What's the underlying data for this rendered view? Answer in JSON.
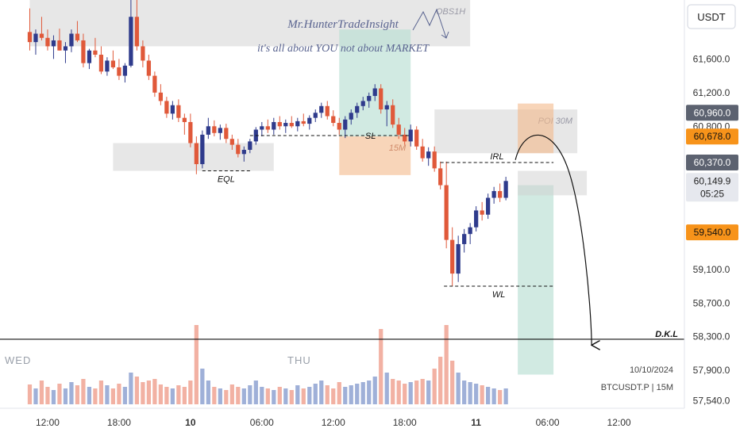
{
  "watermark": {
    "author": "Mr.HunterTradeInsight",
    "tagline": "it's all about YOU not about MARKET"
  },
  "info": {
    "date": "10/10/2024",
    "symbol": "BTCUSDT.P | 15M"
  },
  "day_labels": {
    "wed": "WED",
    "thu": "THU"
  },
  "colors": {
    "up": "#2f3b8c",
    "down": "#e0593a",
    "zone_gray": "#cfcfcf",
    "zone_orange": "#f3b98a",
    "zone_teal": "#b9dfd2",
    "price_badge_dark": "#5c6270",
    "price_badge_orange": "#f7931a"
  },
  "chart_data": {
    "type": "candlestick",
    "currency_label": "USDT",
    "y_axis": {
      "min": 57450,
      "max": 62300,
      "ticks": [
        "61,600.0",
        "61,200.0",
        "60,800.0",
        "59,100.0",
        "58,700.0",
        "58,300.0",
        "57,900.0",
        "57,540.0"
      ],
      "tick_values": [
        61600,
        61200,
        60800,
        59100,
        58700,
        58300,
        57900,
        57540
      ]
    },
    "x_axis": {
      "ticks": [
        "12:00",
        "18:00",
        "10",
        "06:00",
        "12:00",
        "18:00",
        "11",
        "06:00",
        "12:00"
      ],
      "tick_hours": [
        12,
        18,
        24,
        30,
        36,
        42,
        48,
        54,
        60
      ],
      "bold_ticks": [
        "10",
        "11"
      ],
      "min_hour": 8,
      "max_hour": 65.5
    },
    "price_badges": [
      {
        "label": "60,960.0",
        "value": 60960,
        "style": "dark"
      },
      {
        "label": "60,678.0",
        "value": 60678,
        "style": "orange"
      },
      {
        "label": "60,370.0",
        "value": 60370,
        "style": "dark"
      },
      {
        "label": "60,149.9",
        "sublabel": "05:25",
        "value": 60150,
        "style": "light"
      },
      {
        "label": "59,540.0",
        "value": 59540,
        "style": "orange"
      }
    ],
    "zones": [
      {
        "label": "OBS1H",
        "x0": 10.5,
        "x1": 47.5,
        "y0": 61750,
        "y1": 62300,
        "color": "gray"
      },
      {
        "label": "POI 30M",
        "x0": 44.5,
        "x1": 56.5,
        "y0": 60480,
        "y1": 61000,
        "color": "gray"
      },
      {
        "label": "",
        "x0": 17.5,
        "x1": 31,
        "y0": 60270,
        "y1": 60600,
        "color": "gray"
      },
      {
        "label": "15M",
        "x0": 36.5,
        "x1": 42.5,
        "y0": 60220,
        "y1": 60680,
        "color": "orange"
      },
      {
        "label": "",
        "x0": 36.5,
        "x1": 42.5,
        "y0": 60680,
        "y1": 61950,
        "color": "teal"
      },
      {
        "label": "",
        "x0": 51.5,
        "x1": 54.5,
        "y0": 60480,
        "y1": 61070,
        "color": "orange"
      },
      {
        "label": "",
        "x0": 51.5,
        "x1": 54.5,
        "y0": 57850,
        "y1": 60100,
        "color": "teal"
      },
      {
        "label": "",
        "x0": 51.5,
        "x1": 57.3,
        "y0": 59980,
        "y1": 60270,
        "color": "gray"
      }
    ],
    "levels": [
      {
        "label": "EQL",
        "price": 60270,
        "x0": 25,
        "x1": 29,
        "style": "dashed"
      },
      {
        "label": "SL",
        "price": 60690,
        "x0": 29,
        "x1": 42.5,
        "style": "dashed"
      },
      {
        "label": "IRL",
        "price": 60370,
        "x0": 45,
        "x1": 54.5,
        "style": "dashed"
      },
      {
        "label": "WL",
        "price": 58900,
        "x0": 45.3,
        "x1": 54.5,
        "style": "dashed"
      },
      {
        "label": "D.K.L",
        "price": 58270,
        "x0": 8,
        "x1": 65.5,
        "style": "solid"
      }
    ],
    "ohlc": [
      [
        10.5,
        61920,
        62200,
        61700,
        61800
      ],
      [
        11,
        61800,
        61950,
        61650,
        61900
      ],
      [
        11.5,
        61900,
        62100,
        61820,
        61850
      ],
      [
        12,
        61850,
        61950,
        61700,
        61750
      ],
      [
        12.5,
        61750,
        61880,
        61600,
        61820
      ],
      [
        13,
        61820,
        61960,
        61700,
        61700
      ],
      [
        13.5,
        61700,
        61800,
        61550,
        61750
      ],
      [
        14,
        61750,
        61950,
        61680,
        61900
      ],
      [
        14.5,
        61900,
        62050,
        61800,
        61820
      ],
      [
        15,
        61820,
        61900,
        61500,
        61550
      ],
      [
        15.5,
        61550,
        61720,
        61480,
        61700
      ],
      [
        16,
        61700,
        61850,
        61620,
        61650
      ],
      [
        16.5,
        61650,
        61750,
        61420,
        61450
      ],
      [
        17,
        61450,
        61620,
        61400,
        61580
      ],
      [
        17.5,
        61580,
        61700,
        61480,
        61500
      ],
      [
        18,
        61500,
        61600,
        61350,
        61400
      ],
      [
        18.5,
        61400,
        61550,
        61320,
        61520
      ],
      [
        19,
        61520,
        62300,
        61500,
        62100
      ],
      [
        19.5,
        62100,
        62300,
        61700,
        61750
      ],
      [
        20,
        61750,
        61820,
        61500,
        61580
      ],
      [
        20.5,
        61580,
        61650,
        61350,
        61400
      ],
      [
        21,
        61400,
        61450,
        61150,
        61200
      ],
      [
        21.5,
        61200,
        61300,
        61050,
        61100
      ],
      [
        22,
        61100,
        61150,
        60900,
        60950
      ],
      [
        22.5,
        60950,
        61100,
        60880,
        61050
      ],
      [
        23,
        61050,
        61120,
        60850,
        60900
      ],
      [
        23.5,
        60900,
        60950,
        60700,
        60850
      ],
      [
        24,
        60850,
        60950,
        60550,
        60600
      ],
      [
        24.5,
        60600,
        60680,
        60230,
        60350
      ],
      [
        25,
        60350,
        60750,
        60300,
        60700
      ],
      [
        25.5,
        60700,
        60900,
        60650,
        60800
      ],
      [
        26,
        60800,
        60870,
        60680,
        60720
      ],
      [
        26.5,
        60720,
        60820,
        60640,
        60780
      ],
      [
        27,
        60780,
        60830,
        60600,
        60650
      ],
      [
        27.5,
        60650,
        60700,
        60520,
        60580
      ],
      [
        28,
        60580,
        60650,
        60430,
        60470
      ],
      [
        28.5,
        60470,
        60560,
        60380,
        60520
      ],
      [
        29,
        60520,
        60650,
        60480,
        60620
      ],
      [
        29.5,
        60620,
        60790,
        60580,
        60760
      ],
      [
        30,
        60760,
        60850,
        60680,
        60800
      ],
      [
        30.5,
        60800,
        60880,
        60720,
        60760
      ],
      [
        31,
        60760,
        60900,
        60700,
        60850
      ],
      [
        31.5,
        60850,
        60920,
        60760,
        60800
      ],
      [
        32,
        60800,
        60880,
        60720,
        60840
      ],
      [
        32.5,
        60840,
        60920,
        60780,
        60800
      ],
      [
        33,
        60800,
        60900,
        60740,
        60860
      ],
      [
        33.5,
        60860,
        60950,
        60800,
        60830
      ],
      [
        34,
        60830,
        60930,
        60760,
        60900
      ],
      [
        34.5,
        60900,
        61000,
        60850,
        60960
      ],
      [
        35,
        60960,
        61080,
        60900,
        61040
      ],
      [
        35.5,
        61040,
        61100,
        60880,
        60920
      ],
      [
        36,
        60920,
        60990,
        60800,
        60840
      ],
      [
        36.5,
        60840,
        60900,
        60700,
        60760
      ],
      [
        37,
        60760,
        60920,
        60660,
        60880
      ],
      [
        37.5,
        60880,
        61000,
        60820,
        60960
      ],
      [
        38,
        60960,
        61080,
        60900,
        61040
      ],
      [
        38.5,
        61040,
        61150,
        60990,
        61100
      ],
      [
        39,
        61100,
        61200,
        61020,
        61160
      ],
      [
        39.5,
        61160,
        61300,
        61100,
        61250
      ],
      [
        40,
        61250,
        61300,
        60950,
        61000
      ],
      [
        40.5,
        61000,
        61100,
        60800,
        61050
      ],
      [
        41,
        61050,
        61120,
        60780,
        60820
      ],
      [
        41.5,
        60820,
        60900,
        60650,
        60700
      ],
      [
        42,
        60700,
        60780,
        60580,
        60620
      ],
      [
        42.5,
        60620,
        60820,
        60560,
        60760
      ],
      [
        43,
        60760,
        60800,
        60520,
        60560
      ],
      [
        43.5,
        60560,
        60650,
        60380,
        60420
      ],
      [
        44,
        60420,
        60550,
        60330,
        60500
      ],
      [
        44.5,
        60500,
        60560,
        60260,
        60300
      ],
      [
        45,
        60300,
        60380,
        60050,
        60100
      ],
      [
        45.5,
        60100,
        60380,
        59350,
        59450
      ],
      [
        46,
        59450,
        59600,
        58900,
        59050
      ],
      [
        46.5,
        59050,
        59500,
        58950,
        59400
      ],
      [
        47,
        59400,
        59580,
        59300,
        59520
      ],
      [
        47.5,
        59520,
        59650,
        59400,
        59600
      ],
      [
        48,
        59600,
        59850,
        59550,
        59800
      ],
      [
        48.5,
        59800,
        59900,
        59680,
        59750
      ],
      [
        49,
        59750,
        60000,
        59700,
        59950
      ],
      [
        49.5,
        59950,
        60080,
        59880,
        60030
      ],
      [
        50,
        60030,
        60120,
        59900,
        59950
      ],
      [
        50.5,
        59950,
        60200,
        59920,
        60150
      ]
    ],
    "volume": [
      [
        10.5,
        0.25
      ],
      [
        11,
        0.2
      ],
      [
        11.5,
        0.3
      ],
      [
        12,
        0.22
      ],
      [
        12.5,
        0.18
      ],
      [
        13,
        0.26
      ],
      [
        13.5,
        0.2
      ],
      [
        14,
        0.28
      ],
      [
        14.5,
        0.24
      ],
      [
        15,
        0.32
      ],
      [
        15.5,
        0.22
      ],
      [
        16,
        0.2
      ],
      [
        16.5,
        0.3
      ],
      [
        17,
        0.24
      ],
      [
        17.5,
        0.2
      ],
      [
        18,
        0.26
      ],
      [
        18.5,
        0.22
      ],
      [
        19,
        0.4
      ],
      [
        19.5,
        0.35
      ],
      [
        20,
        0.28
      ],
      [
        20.5,
        0.3
      ],
      [
        21,
        0.32
      ],
      [
        21.5,
        0.25
      ],
      [
        22,
        0.22
      ],
      [
        22.5,
        0.2
      ],
      [
        23,
        0.24
      ],
      [
        23.5,
        0.22
      ],
      [
        24,
        0.3
      ],
      [
        24.5,
        1.0
      ],
      [
        25,
        0.45
      ],
      [
        25.5,
        0.3
      ],
      [
        26,
        0.22
      ],
      [
        26.5,
        0.2
      ],
      [
        27,
        0.18
      ],
      [
        27.5,
        0.25
      ],
      [
        28,
        0.22
      ],
      [
        28.5,
        0.2
      ],
      [
        29,
        0.24
      ],
      [
        29.5,
        0.3
      ],
      [
        30,
        0.22
      ],
      [
        30.5,
        0.2
      ],
      [
        31,
        0.18
      ],
      [
        31.5,
        0.22
      ],
      [
        32,
        0.2
      ],
      [
        32.5,
        0.18
      ],
      [
        33,
        0.24
      ],
      [
        33.5,
        0.2
      ],
      [
        34,
        0.22
      ],
      [
        34.5,
        0.26
      ],
      [
        35,
        0.3
      ],
      [
        35.5,
        0.24
      ],
      [
        36,
        0.2
      ],
      [
        36.5,
        0.28
      ],
      [
        37,
        0.22
      ],
      [
        37.5,
        0.24
      ],
      [
        38,
        0.26
      ],
      [
        38.5,
        0.28
      ],
      [
        39,
        0.3
      ],
      [
        39.5,
        0.35
      ],
      [
        40,
        0.95
      ],
      [
        40.5,
        0.4
      ],
      [
        41,
        0.32
      ],
      [
        41.5,
        0.3
      ],
      [
        42,
        0.26
      ],
      [
        42.5,
        0.28
      ],
      [
        43,
        0.3
      ],
      [
        43.5,
        0.32
      ],
      [
        44,
        0.3
      ],
      [
        44.5,
        0.45
      ],
      [
        45,
        0.6
      ],
      [
        45.5,
        1.0
      ],
      [
        46,
        0.55
      ],
      [
        46.5,
        0.4
      ],
      [
        47,
        0.3
      ],
      [
        47.5,
        0.28
      ],
      [
        48,
        0.26
      ],
      [
        48.5,
        0.24
      ],
      [
        49,
        0.22
      ],
      [
        49.5,
        0.2
      ],
      [
        50,
        0.18
      ],
      [
        50.5,
        0.2
      ]
    ],
    "projection": {
      "from": [
        51.3,
        60400
      ],
      "peak": [
        53,
        60690
      ],
      "to": [
        57.7,
        58200
      ]
    }
  }
}
